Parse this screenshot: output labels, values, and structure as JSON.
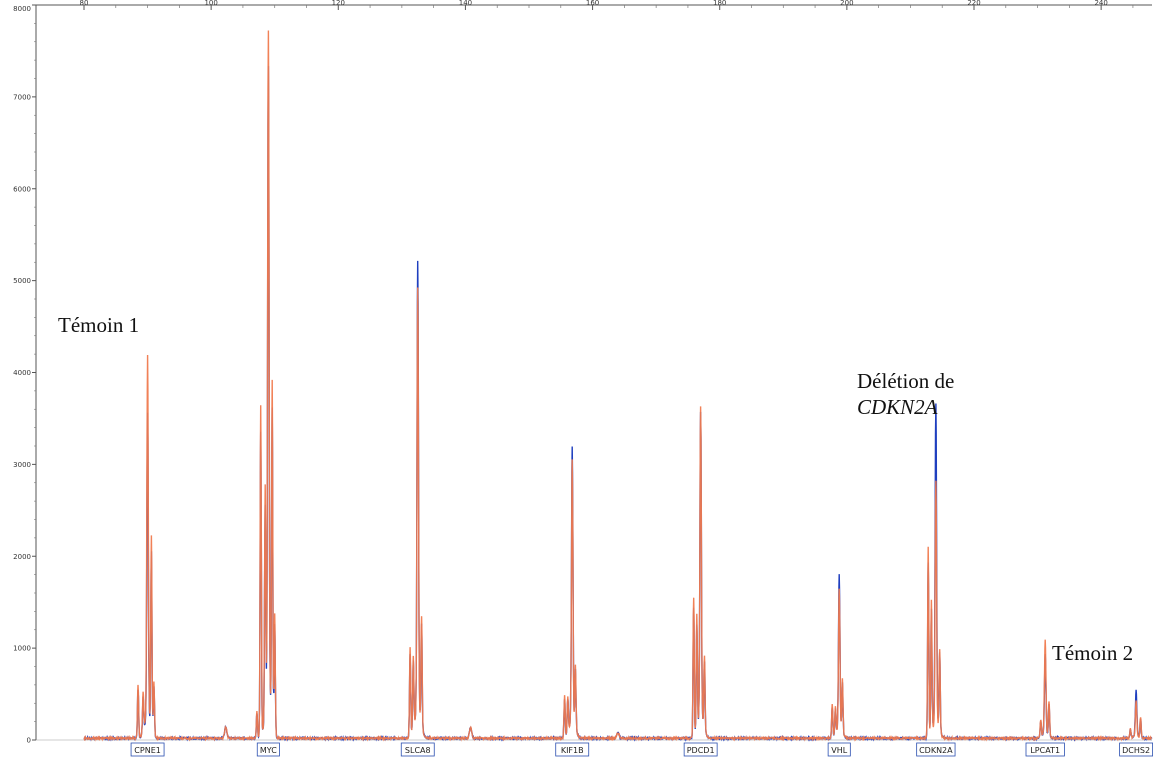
{
  "chart_data": {
    "type": "line",
    "xlim": [
      80,
      248
    ],
    "ylim": [
      0,
      8000
    ],
    "x_ticks": [
      80,
      100,
      120,
      140,
      160,
      180,
      200,
      220,
      240
    ],
    "x_tick_labels": [
      "80",
      "100",
      "120",
      "140",
      "160",
      "180",
      "200",
      "220",
      "240"
    ],
    "y_ticks": [
      0,
      1000,
      2000,
      3000,
      4000,
      5000,
      6000,
      7000,
      8000
    ],
    "y_tick_labels": [
      "0",
      "1000",
      "2000",
      "3000",
      "4000",
      "5000",
      "6000",
      "7000",
      "8000"
    ],
    "grid": false,
    "series_colors": {
      "blue": "#1f3fbf",
      "orange": "#f07a4e"
    },
    "peaks": [
      {
        "label": "CPNE1",
        "x": 90,
        "blue": 3350,
        "orange": 3930,
        "shoulders": [
          [
            88.5,
            580
          ],
          [
            89.3,
            420
          ],
          [
            90.6,
            2100
          ],
          [
            91,
            580
          ]
        ]
      },
      {
        "label": "MYC",
        "x": 109,
        "blue": 6900,
        "orange": 7270,
        "shoulders": [
          [
            107.8,
            3600
          ],
          [
            108.5,
            2500
          ],
          [
            109.6,
            3700
          ],
          [
            110,
            1300
          ],
          [
            107.2,
            300
          ]
        ]
      },
      {
        "label": "SLCA8",
        "x": 132.5,
        "blue": 4900,
        "orange": 4620,
        "shoulders": [
          [
            131.3,
            980
          ],
          [
            131.8,
            800
          ],
          [
            133.1,
            1200
          ]
        ]
      },
      {
        "label": "KIF1B",
        "x": 156.8,
        "blue": 3000,
        "orange": 2870,
        "shoulders": [
          [
            155.6,
            460
          ],
          [
            156.1,
            400
          ],
          [
            157.3,
            700
          ]
        ]
      },
      {
        "label": "PDCD1",
        "x": 177,
        "blue": 3350,
        "orange": 3400,
        "shoulders": [
          [
            175.9,
            1520
          ],
          [
            176.4,
            1250
          ],
          [
            177.6,
            800
          ]
        ]
      },
      {
        "label": "VHL",
        "x": 198.8,
        "blue": 1680,
        "orange": 1540,
        "shoulders": [
          [
            197.7,
            360
          ],
          [
            198.2,
            300
          ],
          [
            199.3,
            600
          ]
        ]
      },
      {
        "label": "CDKN2A",
        "x": 214,
        "blue": 3430,
        "orange": 2650,
        "shoulders": [
          [
            212.8,
            2070
          ],
          [
            213.3,
            1450
          ],
          [
            214.6,
            900
          ]
        ]
      },
      {
        "label": "LPCAT1",
        "x": 231.2,
        "blue": 870,
        "orange": 1010,
        "shoulders": [
          [
            230.5,
            180
          ],
          [
            231.8,
            380
          ]
        ]
      },
      {
        "label": "DCHS2",
        "x": 245.5,
        "blue": 490,
        "orange": 390,
        "shoulders": [
          [
            244.6,
            100
          ],
          [
            246.2,
            220
          ]
        ]
      }
    ],
    "small_bumps": [
      [
        102.3,
        120
      ],
      [
        140.8,
        120
      ],
      [
        164,
        60
      ]
    ],
    "annotations": {
      "temoin1": "Témoin 1",
      "deletion_line1": "Délétion de",
      "deletion_line2": "CDKN2A",
      "temoin2": "Témoin 2"
    }
  }
}
